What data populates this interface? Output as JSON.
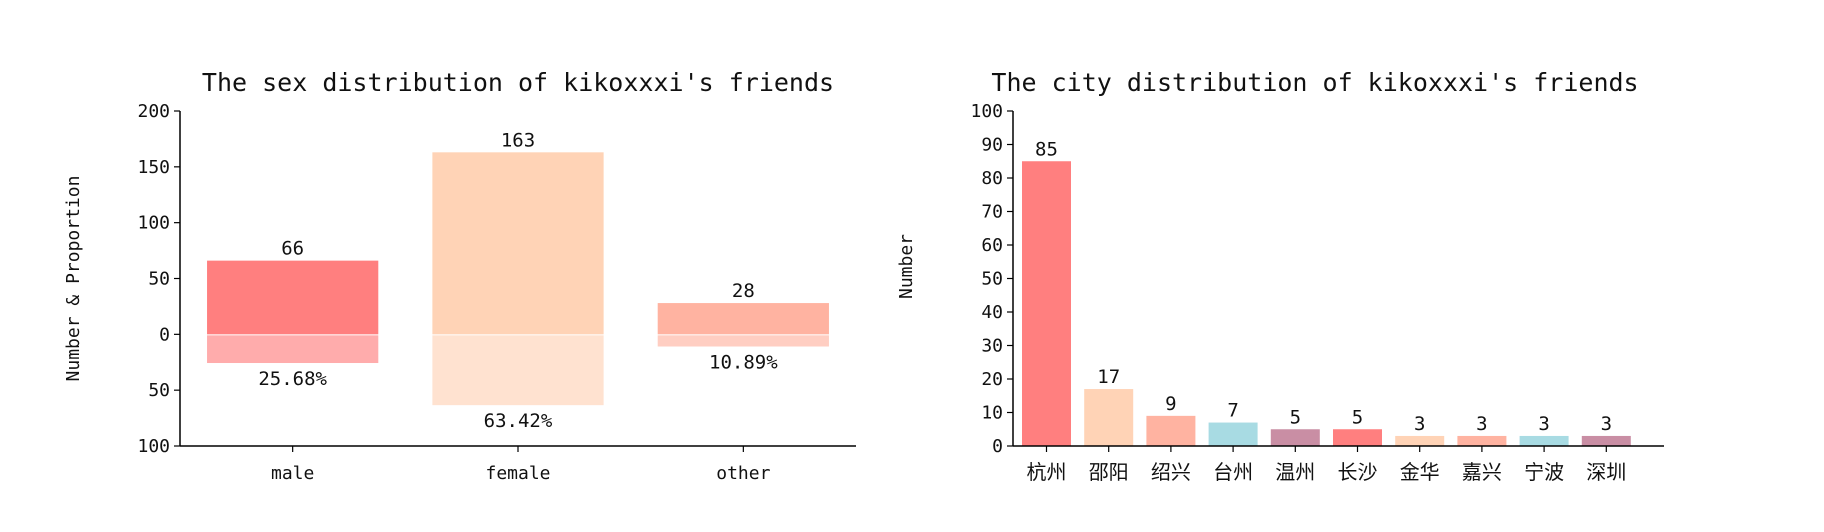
{
  "chart_data": [
    {
      "type": "bar",
      "title": "The sex distribution of kikoxxxi's friends",
      "ylabel": "Number & Proportion",
      "xlabel": "",
      "categories": [
        "male",
        "female",
        "other"
      ],
      "values": [
        66,
        163,
        28
      ],
      "value_labels": [
        "66",
        "163",
        "28"
      ],
      "proportions": [
        25.68,
        63.42,
        10.89
      ],
      "proportion_labels": [
        "25.68%",
        "63.42%",
        "10.89%"
      ],
      "ylim": [
        -100,
        200
      ],
      "y_ticks": [
        200,
        150,
        100,
        50,
        0,
        -50,
        -100
      ],
      "y_tick_labels": [
        "200",
        "150",
        "100",
        "50",
        "0",
        "50",
        "100"
      ],
      "colors": [
        "#ff7f7f",
        "#ffd3b6",
        "#ffb3a1"
      ],
      "grid": false
    },
    {
      "type": "bar",
      "title": "The city distribution of kikoxxxi's friends",
      "ylabel": "Number",
      "xlabel": "",
      "categories": [
        "杭州",
        "邵阳",
        "绍兴",
        "台州",
        "温州",
        "长沙",
        "金华",
        "嘉兴",
        "宁波",
        "深圳"
      ],
      "values": [
        85,
        17,
        9,
        7,
        5,
        5,
        3,
        3,
        3,
        3
      ],
      "value_labels": [
        "85",
        "17",
        "9",
        "7",
        "5",
        "5",
        "3",
        "3",
        "3",
        "3"
      ],
      "ylim": [
        0,
        100
      ],
      "y_ticks": [
        0,
        10,
        20,
        30,
        40,
        50,
        60,
        70,
        80,
        90,
        100
      ],
      "colors": [
        "#ff7f7f",
        "#ffd3b6",
        "#ffb3a1",
        "#a8dbe3",
        "#c98ea4",
        "#ff7f7f",
        "#ffd3b6",
        "#ffb3a1",
        "#a8dbe3",
        "#c98ea4"
      ],
      "grid": false
    }
  ]
}
